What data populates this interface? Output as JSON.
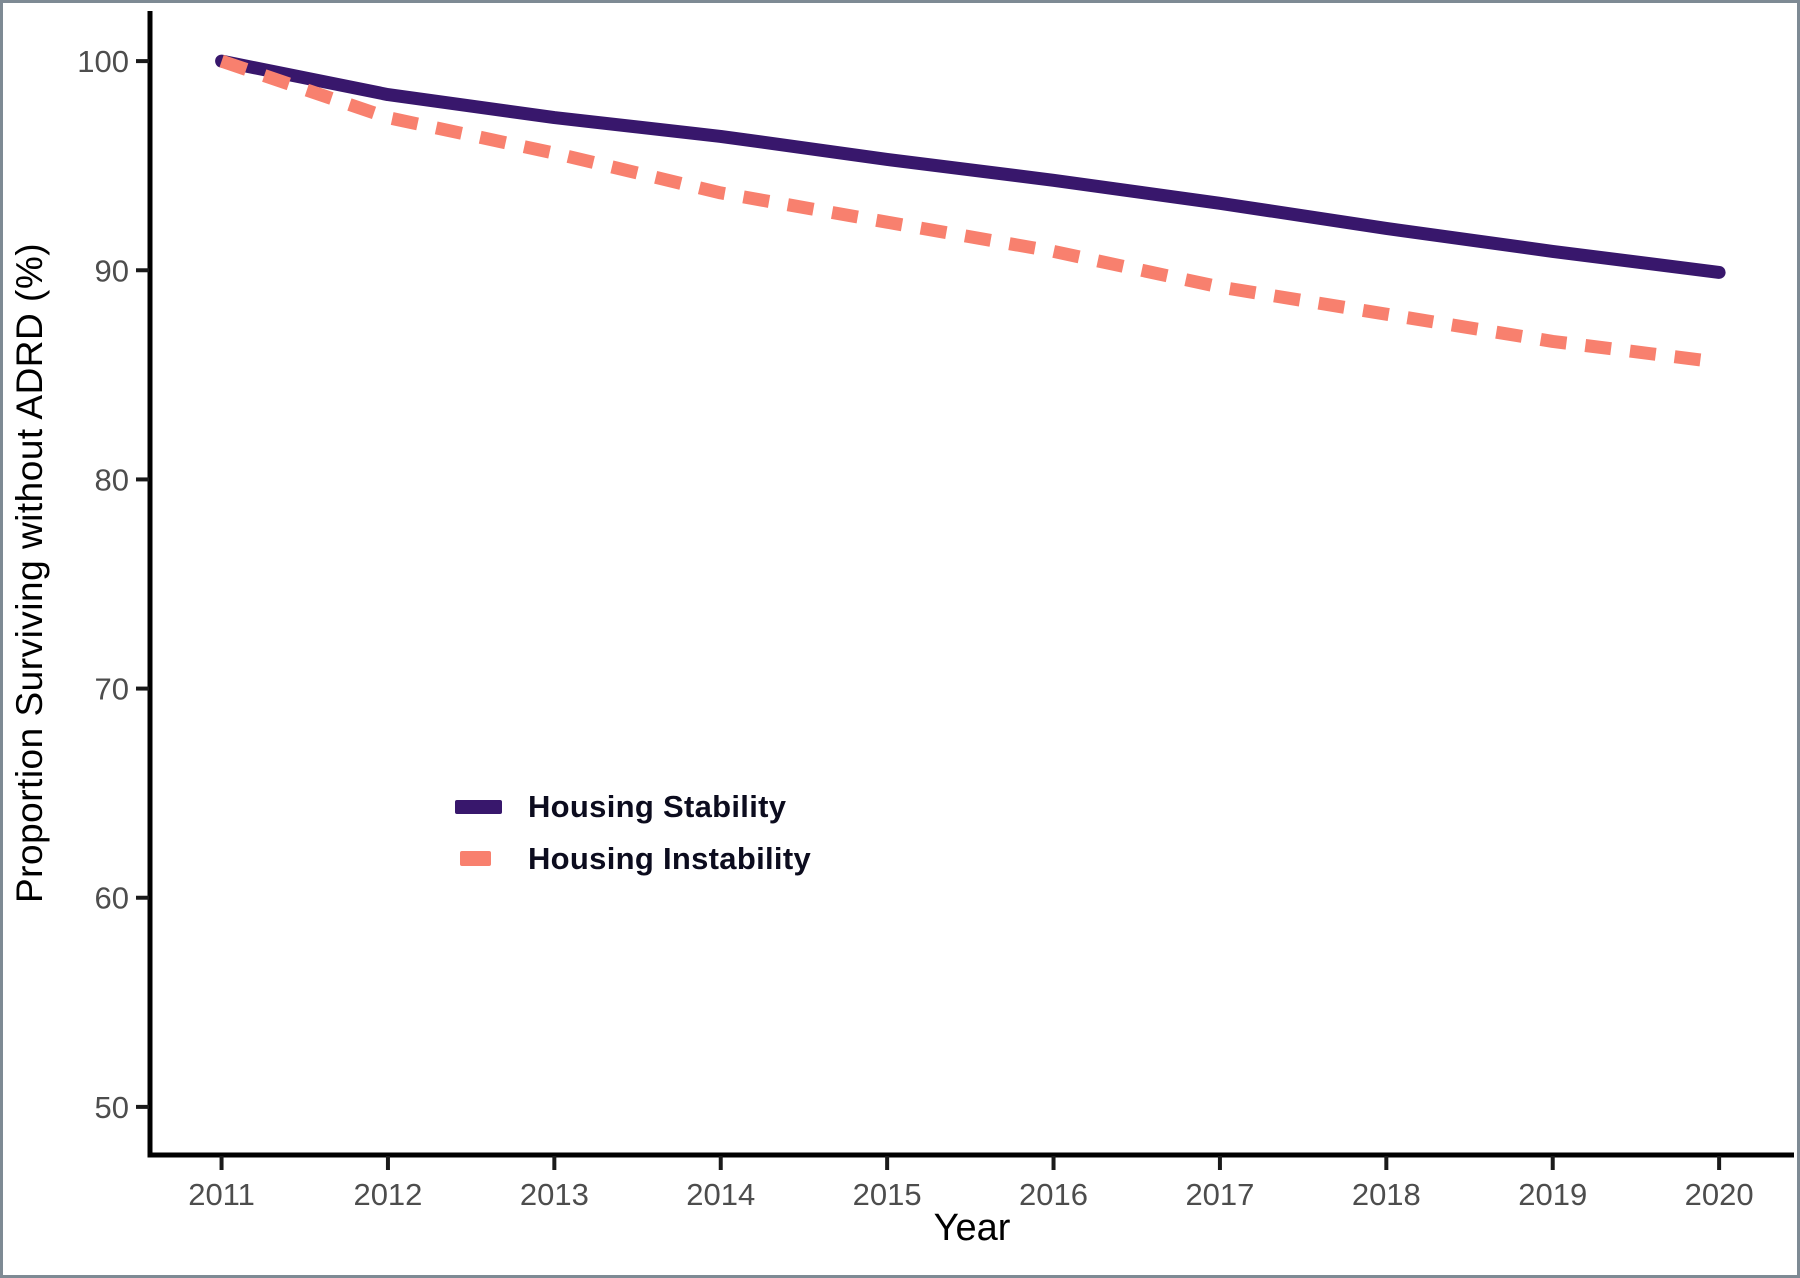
{
  "chart_data": {
    "type": "line",
    "title": "",
    "xlabel": "Year",
    "ylabel": "Proportion Surviving without ADRD (%)",
    "x_ticks": [
      2011,
      2012,
      2013,
      2014,
      2015,
      2016,
      2017,
      2018,
      2019,
      2020
    ],
    "y_ticks": [
      50,
      60,
      70,
      80,
      90,
      100
    ],
    "xlim": [
      2010.57,
      2020.45
    ],
    "ylim": [
      47.7,
      102.3
    ],
    "grid": false,
    "legend_position": "inside-center-left",
    "axis_color": "#000000",
    "tick_color": "#1a1a1a",
    "tick_label_color": "#4d4d4d",
    "series": [
      {
        "name": "Housing Stability",
        "color": "#38176C",
        "style": "solid",
        "x": [
          2011,
          2012,
          2013,
          2014,
          2015,
          2016,
          2017,
          2018,
          2019,
          2020
        ],
        "values": [
          100,
          98.4,
          97.3,
          96.4,
          95.3,
          94.3,
          93.2,
          92.0,
          90.9,
          89.9
        ]
      },
      {
        "name": "Housing Instability",
        "color": "#F8806E",
        "style": "dashed",
        "x": [
          2011,
          2012,
          2013,
          2014,
          2015,
          2016,
          2017,
          2018,
          2019,
          2020
        ],
        "values": [
          100,
          97.3,
          95.6,
          93.7,
          92.3,
          90.9,
          89.2,
          87.9,
          86.6,
          85.6
        ]
      }
    ]
  }
}
